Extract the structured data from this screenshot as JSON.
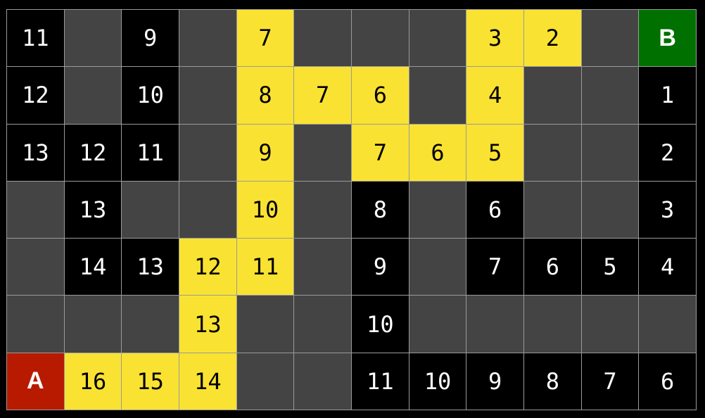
{
  "colors": {
    "wall": "#444444",
    "open": "#000000",
    "path": "#f9e232",
    "start": "#b81a00",
    "end": "#007000"
  },
  "legend_note": "",
  "grid": [
    [
      [
        "open",
        "11"
      ],
      [
        "wall",
        ""
      ],
      [
        "open",
        "9"
      ],
      [
        "wall",
        ""
      ],
      [
        "path",
        "7"
      ],
      [
        "wall",
        ""
      ],
      [
        "wall",
        ""
      ],
      [
        "wall",
        ""
      ],
      [
        "path",
        "3"
      ],
      [
        "path",
        "2"
      ],
      [
        "wall",
        ""
      ],
      [
        "end",
        "B"
      ]
    ],
    [
      [
        "open",
        "12"
      ],
      [
        "wall",
        ""
      ],
      [
        "open",
        "10"
      ],
      [
        "wall",
        ""
      ],
      [
        "path",
        "8"
      ],
      [
        "path",
        "7"
      ],
      [
        "path",
        "6"
      ],
      [
        "wall",
        ""
      ],
      [
        "path",
        "4"
      ],
      [
        "wall",
        ""
      ],
      [
        "wall",
        ""
      ],
      [
        "open",
        "1"
      ]
    ],
    [
      [
        "open",
        "13"
      ],
      [
        "open",
        "12"
      ],
      [
        "open",
        "11"
      ],
      [
        "wall",
        ""
      ],
      [
        "path",
        "9"
      ],
      [
        "wall",
        ""
      ],
      [
        "path",
        "7"
      ],
      [
        "path",
        "6"
      ],
      [
        "path",
        "5"
      ],
      [
        "wall",
        ""
      ],
      [
        "wall",
        ""
      ],
      [
        "open",
        "2"
      ]
    ],
    [
      [
        "wall",
        ""
      ],
      [
        "open",
        "13"
      ],
      [
        "wall",
        ""
      ],
      [
        "wall",
        ""
      ],
      [
        "path",
        "10"
      ],
      [
        "wall",
        ""
      ],
      [
        "open",
        "8"
      ],
      [
        "wall",
        ""
      ],
      [
        "open",
        "6"
      ],
      [
        "wall",
        ""
      ],
      [
        "wall",
        ""
      ],
      [
        "open",
        "3"
      ]
    ],
    [
      [
        "wall",
        ""
      ],
      [
        "open",
        "14"
      ],
      [
        "open",
        "13"
      ],
      [
        "path",
        "12"
      ],
      [
        "path",
        "11"
      ],
      [
        "wall",
        ""
      ],
      [
        "open",
        "9"
      ],
      [
        "wall",
        ""
      ],
      [
        "open",
        "7"
      ],
      [
        "open",
        "6"
      ],
      [
        "open",
        "5"
      ],
      [
        "open",
        "4"
      ]
    ],
    [
      [
        "wall",
        ""
      ],
      [
        "wall",
        ""
      ],
      [
        "wall",
        ""
      ],
      [
        "path",
        "13"
      ],
      [
        "wall",
        ""
      ],
      [
        "wall",
        ""
      ],
      [
        "open",
        "10"
      ],
      [
        "wall",
        ""
      ],
      [
        "wall",
        ""
      ],
      [
        "wall",
        ""
      ],
      [
        "wall",
        ""
      ],
      [
        "wall",
        ""
      ]
    ],
    [
      [
        "start",
        "A"
      ],
      [
        "path",
        "16"
      ],
      [
        "path",
        "15"
      ],
      [
        "path",
        "14"
      ],
      [
        "wall",
        ""
      ],
      [
        "wall",
        ""
      ],
      [
        "open",
        "11"
      ],
      [
        "open",
        "10"
      ],
      [
        "open",
        "9"
      ],
      [
        "open",
        "8"
      ],
      [
        "open",
        "7"
      ],
      [
        "open",
        "6"
      ]
    ]
  ]
}
